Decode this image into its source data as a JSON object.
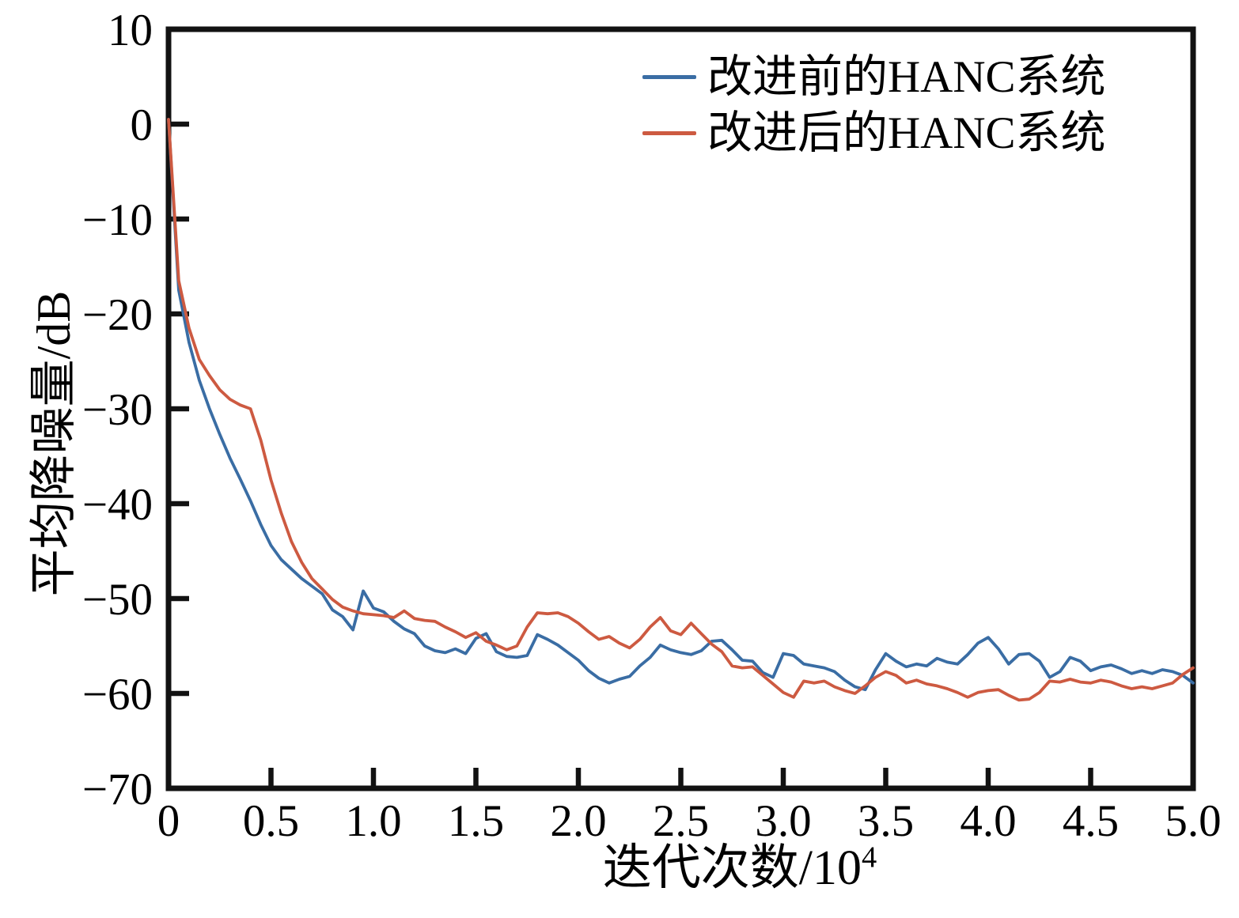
{
  "figure": {
    "background": "#ffffff",
    "axis_color": "#121212",
    "frame_width": 7,
    "tick_length": 23,
    "line_width": 3.8
  },
  "chart_data": {
    "type": "line",
    "title": "",
    "xlabel": "迭代次数/10⁴",
    "xlabel_main": "迭代次数/10",
    "xlabel_sup": "4",
    "ylabel": "平均降噪量/dB",
    "xlim": [
      0,
      5
    ],
    "ylim": [
      -70,
      10
    ],
    "grid": false,
    "legend_position": "top-right",
    "x_ticks": {
      "values": [
        0,
        0.5,
        1.0,
        1.5,
        2.0,
        2.5,
        3.0,
        3.5,
        4.0,
        4.5,
        5.0
      ],
      "labels": [
        "0",
        "0.5",
        "1.0",
        "1.5",
        "2.0",
        "2.5",
        "3.0",
        "3.5",
        "4.0",
        "4.5",
        "5.0"
      ]
    },
    "y_ticks": {
      "values": [
        10,
        0,
        -10,
        -20,
        -30,
        -40,
        -50,
        -60,
        -70
      ],
      "labels": [
        "10",
        "0",
        "−10",
        "−20",
        "−30",
        "−40",
        "−50",
        "−60",
        "−70"
      ]
    },
    "x_start": 0,
    "x_step": 0.05,
    "x_unit": "10^4 iterations",
    "y_unit": "dB",
    "series": [
      {
        "name": "改进前的HANC系统",
        "color": "#3a6da4",
        "values": [
          0.5,
          -17.5,
          -23.0,
          -27.0,
          -30.0,
          -32.7,
          -35.2,
          -37.4,
          -39.7,
          -42.2,
          -44.4,
          -45.9,
          -46.9,
          -47.9,
          -48.7,
          -49.5,
          -51.2,
          -51.9,
          -53.3,
          -49.2,
          -51.0,
          -51.4,
          -52.4,
          -53.2,
          -53.7,
          -55.0,
          -55.5,
          -55.7,
          -55.3,
          -55.8,
          -54.2,
          -53.7,
          -55.6,
          -56.1,
          -56.2,
          -56.0,
          -53.8,
          -54.3,
          -54.9,
          -55.7,
          -56.5,
          -57.6,
          -58.4,
          -58.9,
          -58.5,
          -58.2,
          -57.1,
          -56.2,
          -54.9,
          -55.4,
          -55.7,
          -55.9,
          -55.5,
          -54.5,
          -54.4,
          -55.4,
          -56.5,
          -56.6,
          -57.8,
          -58.3,
          -55.8,
          -56.0,
          -56.9,
          -57.1,
          -57.3,
          -57.7,
          -58.6,
          -59.3,
          -59.6,
          -57.5,
          -55.8,
          -56.6,
          -57.2,
          -56.9,
          -57.1,
          -56.3,
          -56.7,
          -56.9,
          -55.9,
          -54.7,
          -54.1,
          -55.3,
          -56.9,
          -55.9,
          -55.8,
          -56.6,
          -58.3,
          -57.7,
          -56.2,
          -56.6,
          -57.6,
          -57.2,
          -57.0,
          -57.4,
          -57.9,
          -57.6,
          -57.9,
          -57.5,
          -57.7,
          -58.1,
          -58.9
        ]
      },
      {
        "name": "改进后的HANC系统",
        "color": "#cd5a41",
        "values": [
          0.5,
          -16.5,
          -21.5,
          -24.8,
          -26.5,
          -28.0,
          -29.0,
          -29.6,
          -30.0,
          -33.3,
          -37.5,
          -41.0,
          -44.0,
          -46.2,
          -47.9,
          -49.0,
          -50.1,
          -50.9,
          -51.3,
          -51.6,
          -51.7,
          -51.8,
          -52.0,
          -51.3,
          -52.1,
          -52.3,
          -52.4,
          -53.0,
          -53.5,
          -54.1,
          -53.6,
          -54.5,
          -54.9,
          -55.4,
          -55.0,
          -53.0,
          -51.5,
          -51.6,
          -51.5,
          -51.9,
          -52.6,
          -53.5,
          -54.3,
          -54.0,
          -54.7,
          -55.2,
          -54.3,
          -53.0,
          -52.0,
          -53.4,
          -53.8,
          -52.6,
          -53.7,
          -54.8,
          -55.6,
          -57.1,
          -57.3,
          -57.2,
          -58.1,
          -59.0,
          -59.9,
          -60.4,
          -58.7,
          -58.9,
          -58.7,
          -59.3,
          -59.7,
          -60.0,
          -59.2,
          -58.3,
          -57.7,
          -58.1,
          -58.9,
          -58.6,
          -59.0,
          -59.2,
          -59.5,
          -59.9,
          -60.4,
          -59.9,
          -59.7,
          -59.6,
          -60.2,
          -60.7,
          -60.6,
          -59.9,
          -58.7,
          -58.8,
          -58.5,
          -58.8,
          -58.9,
          -58.6,
          -58.8,
          -59.2,
          -59.5,
          -59.3,
          -59.5,
          -59.2,
          -58.9,
          -58.0,
          -57.3
        ]
      }
    ]
  }
}
